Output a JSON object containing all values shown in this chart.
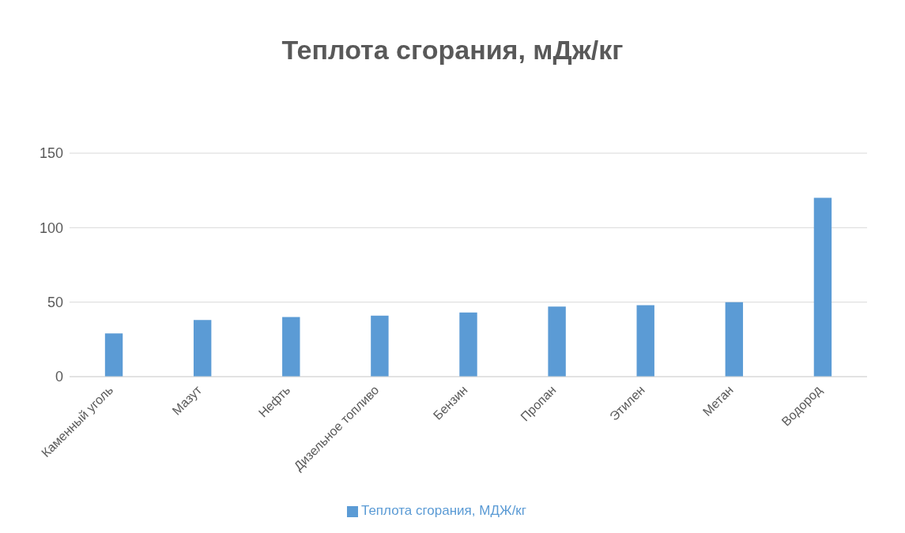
{
  "chart_data": {
    "type": "bar",
    "title": "Теплота сгорания, мДж/кг",
    "categories": [
      "Каменный уголь",
      "Мазут",
      "Нефть",
      "Дизельное топливо",
      "Бензин",
      "Пропан",
      "Этилен",
      "Метан",
      "Водород"
    ],
    "series": [
      {
        "name": "Теплота сгорания, МДЖ/кг",
        "color": "#5b9bd5",
        "values": [
          29,
          38,
          40,
          41,
          43,
          47,
          48,
          50,
          120
        ]
      }
    ],
    "ylim": [
      0,
      150
    ],
    "yticks": [
      0,
      50,
      100,
      150
    ],
    "grid": "y",
    "legend": "bottom"
  }
}
